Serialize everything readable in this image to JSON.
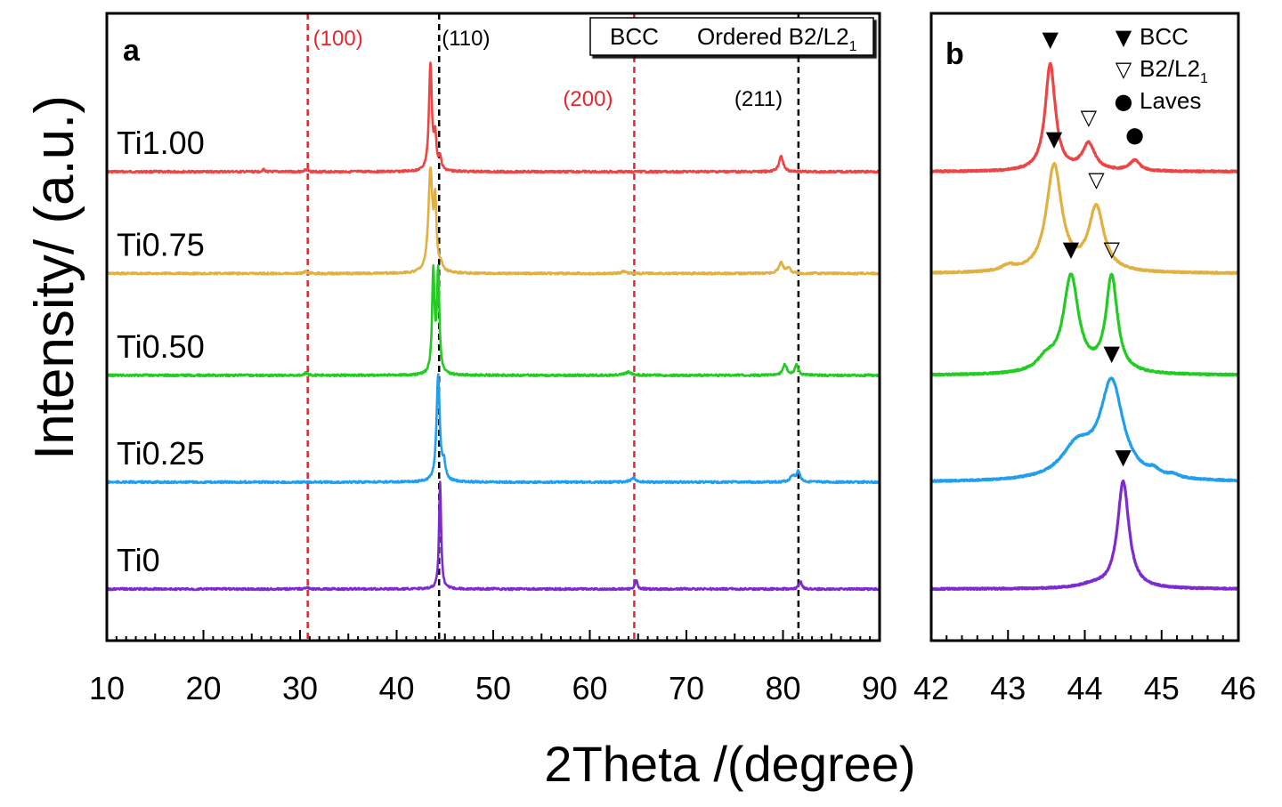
{
  "figure": {
    "ylabel": "Intensity/ (a.u.)",
    "xlabel": "2Theta /(degree)"
  },
  "chart_data": [
    {
      "panel": "a",
      "type": "line",
      "xlim": [
        10,
        90
      ],
      "x_ticks": [
        10,
        20,
        30,
        40,
        50,
        60,
        70,
        80,
        90
      ],
      "x_tick_labels": [
        "10",
        "20",
        "30",
        "40",
        "50",
        "60",
        "70",
        "80",
        "90"
      ],
      "legend_box": [
        {
          "text": "BCC",
          "color": "#000000"
        },
        {
          "text": "Ordered B2/L2",
          "sub": "1",
          "color": "#e8252b"
        }
      ],
      "reference_lines": [
        {
          "x": 30.8,
          "label": "(100)",
          "color": "#e8252b",
          "style": "dashed"
        },
        {
          "x": 44.4,
          "label": "(110)",
          "color": "#000000",
          "style": "dashed"
        },
        {
          "x": 64.6,
          "label": "(200)",
          "color": "#e8252b",
          "style": "dashed"
        },
        {
          "x": 81.6,
          "label": "(211)",
          "color": "#000000",
          "style": "dashed"
        }
      ],
      "series": [
        {
          "name": "Ti1.00",
          "color": "#ee4444",
          "baseline": 0.82,
          "peaks": [
            [
              43.5,
              1.0,
              0.18
            ],
            [
              44.0,
              0.3,
              0.15
            ],
            [
              44.5,
              0.12,
              0.15
            ],
            [
              79.8,
              0.15,
              0.25
            ],
            [
              30.6,
              0.02,
              0.2
            ],
            [
              26.2,
              0.02,
              0.15
            ]
          ]
        },
        {
          "name": "Ti0.75",
          "color": "#e0b040",
          "baseline": 0.62,
          "peaks": [
            [
              43.5,
              0.95,
              0.25
            ],
            [
              44.0,
              0.6,
              0.15
            ],
            [
              44.6,
              0.05,
              0.2
            ],
            [
              79.8,
              0.1,
              0.3
            ],
            [
              80.6,
              0.05,
              0.2
            ],
            [
              63.5,
              0.02,
              0.3
            ],
            [
              30.6,
              0.02,
              0.2
            ]
          ]
        },
        {
          "name": "Ti0.50",
          "color": "#22cc22",
          "baseline": 0.42,
          "peaks": [
            [
              43.8,
              0.95,
              0.15
            ],
            [
              44.3,
              0.95,
              0.15
            ],
            [
              80.2,
              0.1,
              0.25
            ],
            [
              81.4,
              0.1,
              0.2
            ],
            [
              64.0,
              0.03,
              0.4
            ],
            [
              30.6,
              0.02,
              0.2
            ]
          ]
        },
        {
          "name": "Ti0.25",
          "color": "#1f9fee",
          "baseline": 0.21,
          "peaks": [
            [
              44.3,
              1.0,
              0.2
            ],
            [
              44.9,
              0.15,
              0.2
            ],
            [
              64.5,
              0.04,
              0.3
            ],
            [
              81.0,
              0.06,
              0.3
            ],
            [
              81.6,
              0.1,
              0.2
            ]
          ]
        },
        {
          "name": "Ti0",
          "color": "#7d2bd1",
          "baseline": 0.0,
          "peaks": [
            [
              44.5,
              1.0,
              0.13
            ],
            [
              64.8,
              0.08,
              0.15
            ],
            [
              81.8,
              0.07,
              0.18
            ],
            [
              30.8,
              0.01,
              0.2
            ]
          ]
        }
      ]
    },
    {
      "panel": "b",
      "type": "line",
      "xlim": [
        42,
        46
      ],
      "x_ticks": [
        42,
        43,
        44,
        45,
        46
      ],
      "x_tick_labels": [
        "42",
        "43",
        "44",
        "45",
        "46"
      ],
      "legend": [
        {
          "marker": "▼",
          "text": "BCC"
        },
        {
          "marker": "▽",
          "text": "B2/L2",
          "sub": "1"
        },
        {
          "marker": "●",
          "text": "Laves"
        }
      ],
      "series": [
        {
          "name": "Ti1.00",
          "color": "#ee4444",
          "baseline": 0.82,
          "peaks": [
            [
              43.55,
              1.0,
              0.08
            ],
            [
              44.05,
              0.25,
              0.1
            ],
            [
              44.65,
              0.1,
              0.08
            ]
          ],
          "markers": [
            {
              "x": 43.55,
              "symbol": "▼"
            },
            {
              "x": 44.05,
              "symbol": "▽"
            },
            {
              "x": 44.65,
              "symbol": "●"
            }
          ]
        },
        {
          "name": "Ti0.75",
          "color": "#e0b040",
          "baseline": 0.62,
          "peaks": [
            [
              43.6,
              1.0,
              0.12
            ],
            [
              44.15,
              0.6,
              0.12
            ],
            [
              43.0,
              0.05,
              0.1
            ]
          ],
          "markers": [
            {
              "x": 43.6,
              "symbol": "▼"
            },
            {
              "x": 44.15,
              "symbol": "▽"
            }
          ]
        },
        {
          "name": "Ti0.50",
          "color": "#22cc22",
          "baseline": 0.42,
          "peaks": [
            [
              43.82,
              0.9,
              0.12
            ],
            [
              44.35,
              0.9,
              0.09
            ],
            [
              43.5,
              0.12,
              0.15
            ]
          ],
          "markers": [
            {
              "x": 43.82,
              "symbol": "▼"
            },
            {
              "x": 44.35,
              "symbol": "▽"
            }
          ]
        },
        {
          "name": "Ti0.25",
          "color": "#1f9fee",
          "baseline": 0.21,
          "peaks": [
            [
              44.35,
              0.9,
              0.18
            ],
            [
              43.9,
              0.3,
              0.25
            ],
            [
              44.9,
              0.05,
              0.08
            ],
            [
              45.15,
              0.03,
              0.08
            ]
          ],
          "markers": [
            {
              "x": 44.35,
              "symbol": "▼"
            }
          ]
        },
        {
          "name": "Ti0",
          "color": "#7d2bd1",
          "baseline": 0.0,
          "peaks": [
            [
              44.5,
              1.0,
              0.09
            ],
            [
              44.1,
              0.03,
              0.2
            ]
          ],
          "markers": [
            {
              "x": 44.5,
              "symbol": "▼"
            }
          ]
        }
      ]
    }
  ]
}
